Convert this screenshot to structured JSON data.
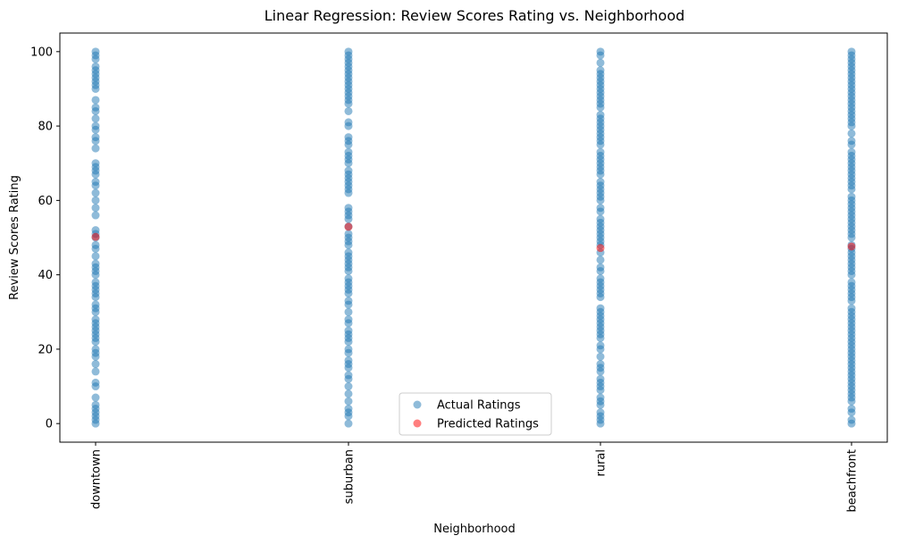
{
  "chart_data": {
    "type": "scatter",
    "title": "Linear Regression: Review Scores Rating vs. Neighborhood",
    "xlabel": "Neighborhood",
    "ylabel": "Review Scores Rating",
    "categories": [
      "downtown",
      "suburban",
      "rural",
      "beachfront"
    ],
    "ylim": [
      -5,
      105
    ],
    "yticks": [
      0,
      20,
      40,
      60,
      80,
      100
    ],
    "legend": {
      "placement": "lower-center",
      "entries": [
        "Actual Ratings",
        "Predicted Ratings"
      ]
    },
    "colors": {
      "actual": "#1f77b4",
      "predicted": "#ff0000"
    },
    "series": [
      {
        "name": "Actual Ratings",
        "points": {
          "downtown": [
            0,
            1,
            2,
            3,
            4,
            5,
            7,
            10,
            11,
            14,
            16,
            18,
            19,
            20,
            22,
            23,
            24,
            25,
            26,
            27,
            28,
            30,
            31,
            32,
            34,
            35,
            36,
            37,
            38,
            40,
            41,
            42,
            43,
            45,
            47,
            48,
            50,
            51,
            52,
            56,
            58,
            60,
            62,
            64,
            65,
            67,
            68,
            69,
            70,
            74,
            76,
            77,
            79,
            80,
            82,
            84,
            85,
            87,
            90,
            91,
            92,
            93,
            94,
            95,
            96,
            98,
            99,
            100
          ],
          "suburban": [
            0,
            2,
            3,
            4,
            6,
            8,
            10,
            12,
            13,
            15,
            16,
            17,
            19,
            20,
            22,
            23,
            24,
            25,
            27,
            28,
            30,
            32,
            33,
            35,
            36,
            37,
            38,
            39,
            41,
            42,
            43,
            44,
            45,
            46,
            48,
            49,
            50,
            51,
            53,
            55,
            56,
            57,
            58,
            62,
            63,
            64,
            65,
            66,
            67,
            68,
            70,
            71,
            72,
            73,
            75,
            76,
            77,
            80,
            81,
            84,
            86,
            87,
            88,
            89,
            90,
            91,
            92,
            93,
            94,
            95,
            96,
            97,
            98,
            99,
            100
          ],
          "rural": [
            0,
            1,
            2,
            3,
            5,
            6,
            7,
            9,
            10,
            11,
            12,
            14,
            15,
            16,
            18,
            20,
            21,
            23,
            24,
            25,
            26,
            27,
            28,
            29,
            30,
            31,
            34,
            35,
            36,
            37,
            38,
            39,
            41,
            42,
            44,
            46,
            48,
            49,
            50,
            51,
            52,
            53,
            54,
            55,
            57,
            58,
            60,
            61,
            62,
            63,
            64,
            65,
            67,
            68,
            69,
            70,
            71,
            72,
            73,
            75,
            76,
            77,
            78,
            79,
            80,
            81,
            82,
            83,
            85,
            86,
            87,
            88,
            89,
            90,
            91,
            92,
            93,
            94,
            95,
            97,
            99,
            100
          ],
          "beachfront": [
            0,
            1,
            3,
            4,
            6,
            7,
            8,
            9,
            10,
            11,
            12,
            13,
            14,
            15,
            16,
            17,
            18,
            19,
            20,
            21,
            22,
            23,
            24,
            25,
            26,
            27,
            28,
            29,
            30,
            31,
            33,
            34,
            35,
            36,
            37,
            38,
            40,
            41,
            42,
            43,
            44,
            45,
            46,
            47,
            48,
            50,
            51,
            52,
            53,
            54,
            55,
            56,
            57,
            58,
            59,
            60,
            61,
            63,
            64,
            65,
            66,
            67,
            68,
            69,
            70,
            71,
            72,
            73,
            75,
            76,
            78,
            80,
            81,
            82,
            83,
            84,
            85,
            86,
            87,
            88,
            89,
            90,
            91,
            92,
            93,
            94,
            95,
            96,
            97,
            98,
            99,
            100
          ]
        }
      },
      {
        "name": "Predicted Ratings",
        "values": [
          50.2,
          52.9,
          47.2,
          47.6
        ]
      }
    ]
  }
}
